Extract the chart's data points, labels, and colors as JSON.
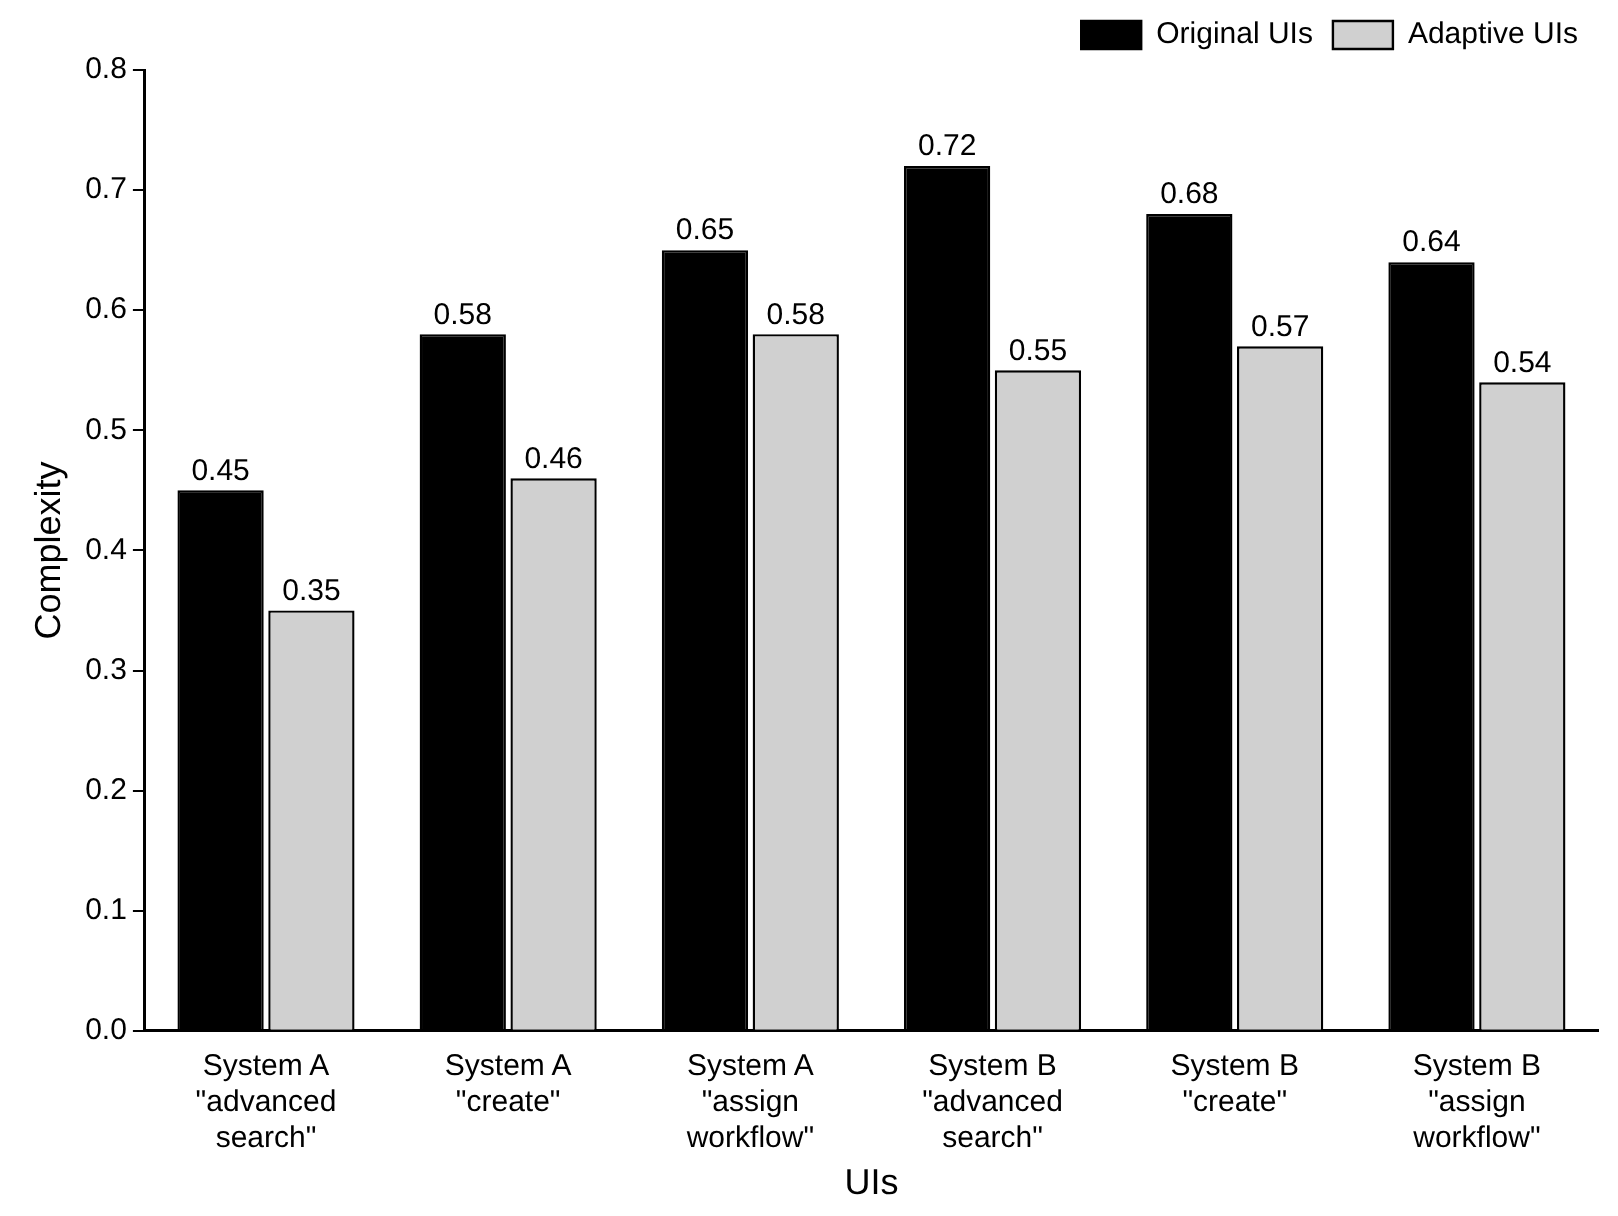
{
  "chart_data": {
    "type": "bar",
    "xlabel": "UIs",
    "ylabel": "Complexity",
    "categories": [
      "System A\n\"advanced\nsearch\"",
      "System A\n\"create\"",
      "System A\n\"assign\nworkflow\"",
      "System B\n\"advanced\nsearch\"",
      "System B\n\"create\"",
      "System B\n\"assign\nworkflow\""
    ],
    "series": [
      {
        "name": "Original UIs",
        "color": "#000000",
        "values": [
          0.45,
          0.58,
          0.65,
          0.72,
          0.68,
          0.64
        ]
      },
      {
        "name": "Adaptive UIs",
        "color": "#d0d0d0",
        "values": [
          0.35,
          0.46,
          0.58,
          0.55,
          0.57,
          0.54
        ]
      }
    ],
    "ylim": [
      0,
      0.8
    ],
    "yticks": [
      {
        "value": 0,
        "label": "0.0"
      },
      {
        "value": 0.1,
        "label": "0.1"
      },
      {
        "value": 0.2,
        "label": "0.2"
      },
      {
        "value": 0.3,
        "label": "0.3"
      },
      {
        "value": 0.4,
        "label": "0.4"
      },
      {
        "value": 0.5,
        "label": "0.5"
      },
      {
        "value": 0.6,
        "label": "0.6"
      },
      {
        "value": 0.7,
        "label": "0.7"
      },
      {
        "value": 0.8,
        "label": "0.8"
      }
    ],
    "data_labels": true,
    "grid": false,
    "legend": "top right"
  }
}
